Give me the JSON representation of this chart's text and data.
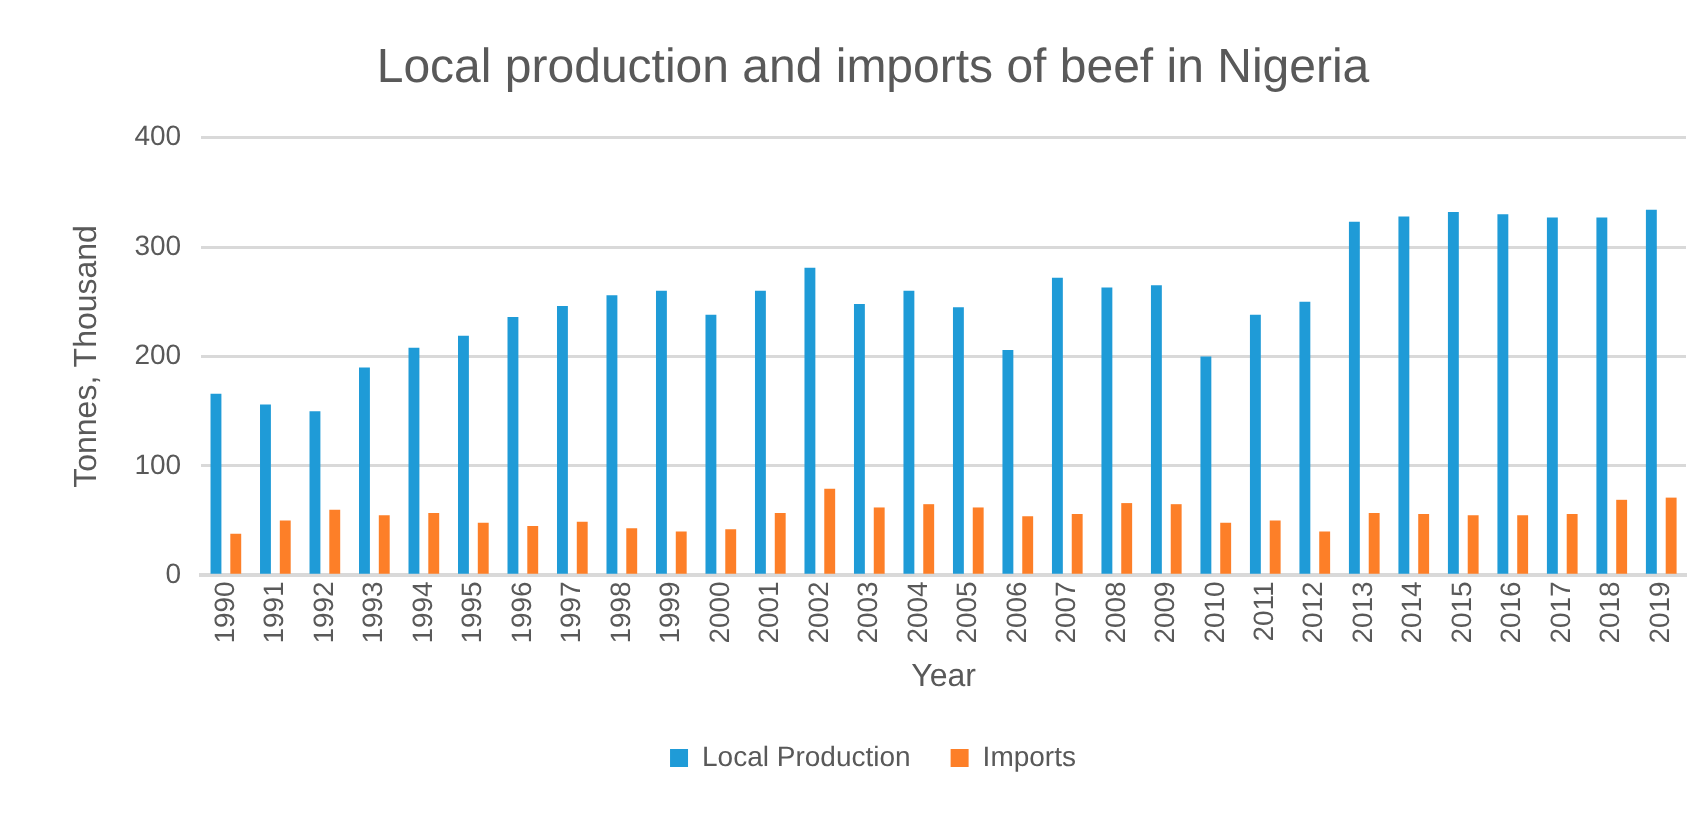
{
  "chart_data": {
    "type": "bar",
    "title": "Local production and imports of beef in Nigeria",
    "xlabel": "Year",
    "ylabel": "Tonnes, Thousand",
    "categories": [
      "1990",
      "1991",
      "1992",
      "1993",
      "1994",
      "1995",
      "1996",
      "1997",
      "1998",
      "1999",
      "2000",
      "2001",
      "2002",
      "2003",
      "2004",
      "2005",
      "2006",
      "2007",
      "2008",
      "2009",
      "2010",
      "2011",
      "2012",
      "2013",
      "2014",
      "2015",
      "2016",
      "2017",
      "2018",
      "2019"
    ],
    "series": [
      {
        "name": "Local Production",
        "color": "#1f9bd7",
        "values": [
          166,
          156,
          150,
          190,
          208,
          219,
          236,
          246,
          256,
          260,
          238,
          260,
          281,
          248,
          260,
          245,
          206,
          272,
          263,
          265,
          200,
          238,
          250,
          323,
          328,
          332,
          330,
          327,
          327,
          334
        ]
      },
      {
        "name": "Imports",
        "color": "#fd7f28",
        "values": [
          38,
          50,
          60,
          55,
          57,
          48,
          45,
          49,
          43,
          40,
          42,
          57,
          79,
          62,
          65,
          62,
          54,
          56,
          66,
          65,
          48,
          50,
          40,
          57,
          56,
          55,
          55,
          56,
          69,
          71
        ]
      }
    ],
    "ylim": [
      0,
      400
    ],
    "yticks": [
      0,
      100,
      200,
      300,
      400
    ],
    "grid": "y",
    "legend": "bottom"
  }
}
